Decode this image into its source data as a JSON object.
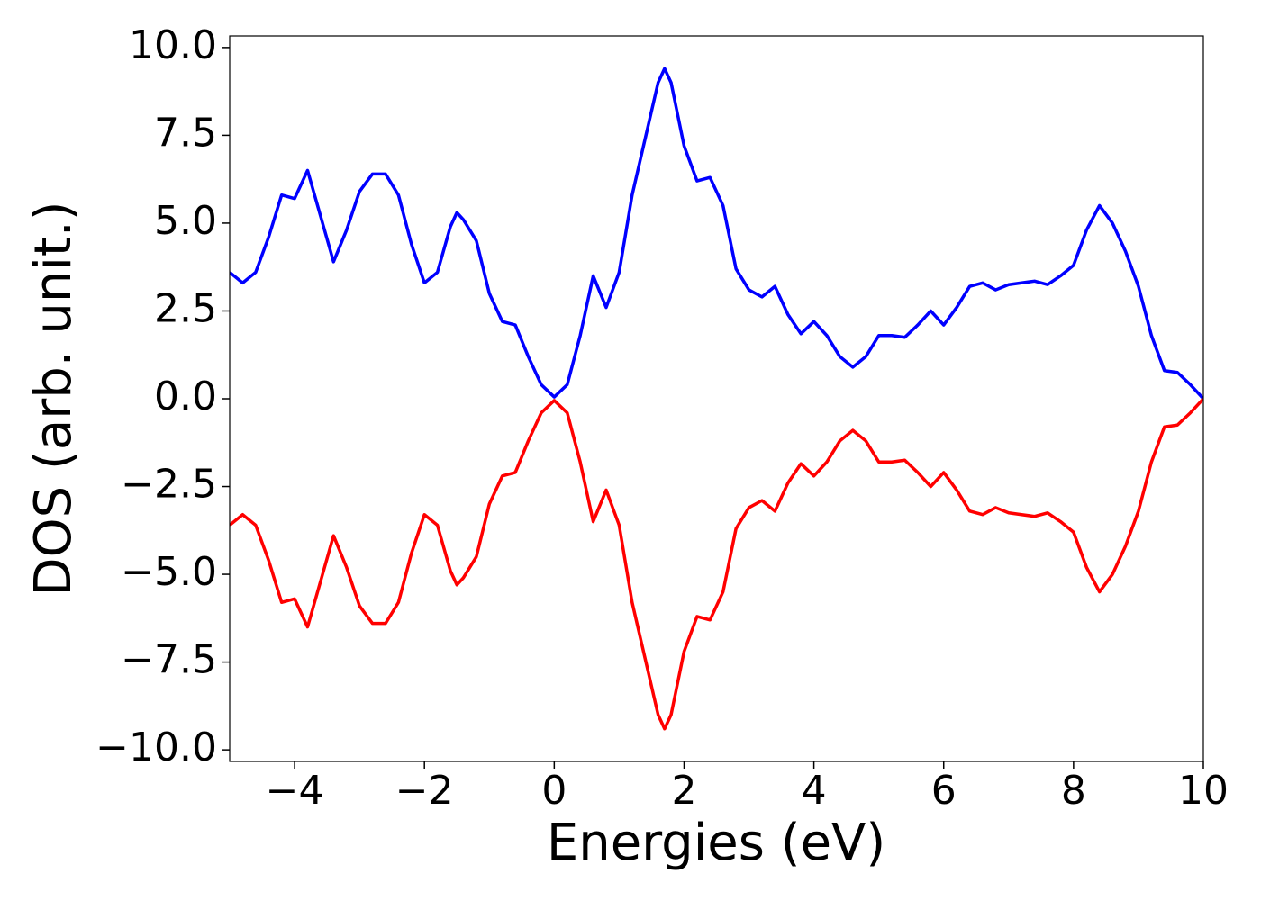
{
  "chart_data": {
    "type": "line",
    "xlabel": "Energies (eV)",
    "ylabel": "DOS (arb. unit.)",
    "x": [
      -5,
      -4.8,
      -4.6,
      -4.4,
      -4.2,
      -4,
      -3.8,
      -3.6,
      -3.4,
      -3.2,
      -3,
      -2.8,
      -2.6,
      -2.4,
      -2.2,
      -2,
      -1.8,
      -1.6,
      -1.5,
      -1.4,
      -1.2,
      -1,
      -0.8,
      -0.6,
      -0.4,
      -0.2,
      0,
      0.2,
      0.4,
      0.6,
      0.8,
      1,
      1.2,
      1.4,
      1.6,
      1.7,
      1.8,
      2,
      2.2,
      2.4,
      2.6,
      2.8,
      3,
      3.2,
      3.4,
      3.6,
      3.8,
      4,
      4.2,
      4.4,
      4.6,
      4.8,
      5,
      5.2,
      5.4,
      5.6,
      5.8,
      6,
      6.2,
      6.4,
      6.6,
      6.8,
      7,
      7.2,
      7.4,
      7.6,
      7.8,
      8,
      8.2,
      8.4,
      8.6,
      8.8,
      9,
      9.2,
      9.4,
      9.6,
      9.8,
      10
    ],
    "series": [
      {
        "color": "#0000ff",
        "values": [
          3.6,
          3.3,
          3.6,
          4.6,
          5.8,
          5.7,
          6.5,
          5.2,
          3.9,
          4.8,
          5.9,
          6.4,
          6.4,
          5.8,
          4.4,
          3.3,
          3.6,
          4.9,
          5.3,
          5.1,
          4.5,
          3.0,
          2.2,
          2.1,
          1.2,
          0.4,
          0.05,
          0.4,
          1.8,
          3.5,
          2.6,
          3.6,
          5.8,
          7.4,
          9.0,
          9.4,
          9.0,
          7.2,
          6.2,
          6.3,
          5.5,
          3.7,
          3.1,
          2.9,
          3.2,
          2.4,
          1.85,
          2.2,
          1.8,
          1.2,
          0.9,
          1.2,
          1.8,
          1.8,
          1.75,
          2.1,
          2.5,
          2.1,
          2.6,
          3.2,
          3.3,
          3.1,
          3.25,
          3.3,
          3.35,
          3.25,
          3.5,
          3.8,
          4.8,
          5.5,
          5.0,
          4.2,
          3.2,
          1.8,
          0.8,
          0.75,
          0.4,
          0.0
        ]
      },
      {
        "color": "#ff0000",
        "values": [
          -3.6,
          -3.3,
          -3.6,
          -4.6,
          -5.8,
          -5.7,
          -6.5,
          -5.2,
          -3.9,
          -4.8,
          -5.9,
          -6.4,
          -6.4,
          -5.8,
          -4.4,
          -3.3,
          -3.6,
          -4.9,
          -5.3,
          -5.1,
          -4.5,
          -3.0,
          -2.2,
          -2.1,
          -1.2,
          -0.4,
          -0.05,
          -0.4,
          -1.8,
          -3.5,
          -2.6,
          -3.6,
          -5.8,
          -7.4,
          -9.0,
          -9.4,
          -9.0,
          -7.2,
          -6.2,
          -6.3,
          -5.5,
          -3.7,
          -3.1,
          -2.9,
          -3.2,
          -2.4,
          -1.85,
          -2.2,
          -1.8,
          -1.2,
          -0.9,
          -1.2,
          -1.8,
          -1.8,
          -1.75,
          -2.1,
          -2.5,
          -2.1,
          -2.6,
          -3.2,
          -3.3,
          -3.1,
          -3.25,
          -3.3,
          -3.35,
          -3.25,
          -3.5,
          -3.8,
          -4.8,
          -5.5,
          -5.0,
          -4.2,
          -3.2,
          -1.8,
          -0.8,
          -0.75,
          -0.4,
          0
        ]
      }
    ],
    "xlim": [
      -5,
      10
    ],
    "xticks": [
      {
        "value": -4,
        "label": "−4"
      },
      {
        "value": -2,
        "label": "−2"
      },
      0,
      2,
      4,
      6,
      8,
      10
    ],
    "ylim": [
      -10.33,
      10.33
    ],
    "yticks": [
      {
        "value": -10,
        "label": "−10.0"
      },
      {
        "value": -7.5,
        "label": "−7.5"
      },
      {
        "value": -5,
        "label": "−5.0"
      },
      {
        "value": -2.5,
        "label": "−2.5"
      },
      {
        "value": 0,
        "label": "0.0"
      },
      {
        "value": 2.5,
        "label": "2.5"
      },
      {
        "value": 5,
        "label": "5.0"
      },
      {
        "value": 7.5,
        "label": "7.5"
      },
      {
        "value": 10,
        "label": "10.0"
      }
    ],
    "grid": false
  }
}
